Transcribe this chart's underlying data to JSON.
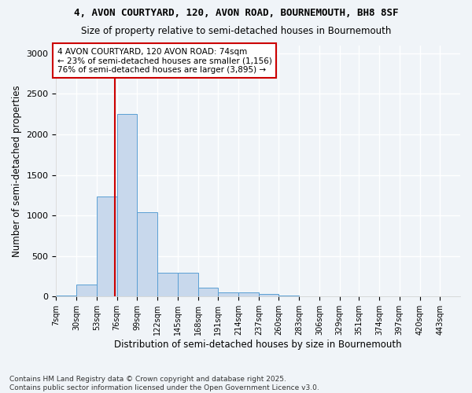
{
  "title1": "4, AVON COURTYARD, 120, AVON ROAD, BOURNEMOUTH, BH8 8SF",
  "title2": "Size of property relative to semi-detached houses in Bournemouth",
  "xlabel": "Distribution of semi-detached houses by size in Bournemouth",
  "ylabel": "Number of semi-detached properties",
  "bin_edges": [
    7,
    30,
    53,
    76,
    99,
    122,
    145,
    168,
    191,
    214,
    237,
    260,
    283,
    306,
    329,
    351,
    374,
    397,
    420,
    443,
    466
  ],
  "bar_heights": [
    10,
    150,
    1230,
    2250,
    1040,
    290,
    290,
    110,
    55,
    55,
    30,
    15,
    5,
    2,
    1,
    0,
    0,
    0,
    0,
    0
  ],
  "bar_color": "#c8d8ec",
  "bar_edge_color": "#5a9fd4",
  "property_size": 74,
  "vline_color": "#cc0000",
  "annotation_text": "4 AVON COURTYARD, 120 AVON ROAD: 74sqm\n← 23% of semi-detached houses are smaller (1,156)\n76% of semi-detached houses are larger (3,895) →",
  "annotation_box_color": "#ffffff",
  "annotation_box_edge": "#cc0000",
  "ylim": [
    0,
    3100
  ],
  "yticks": [
    0,
    500,
    1000,
    1500,
    2000,
    2500,
    3000
  ],
  "footer": "Contains HM Land Registry data © Crown copyright and database right 2025.\nContains public sector information licensed under the Open Government Licence v3.0.",
  "bg_color": "#f0f4f8",
  "grid_color": "#ffffff"
}
